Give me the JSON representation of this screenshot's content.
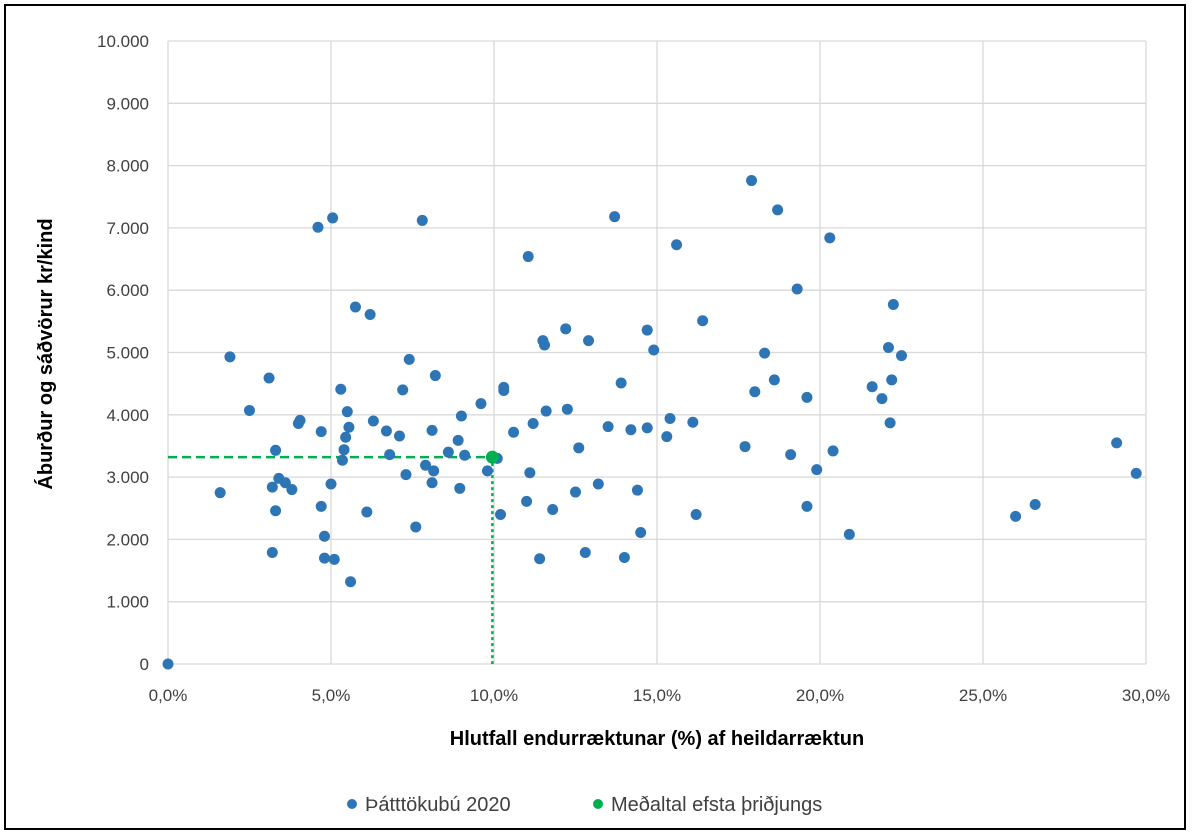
{
  "chart_data": {
    "type": "scatter",
    "xlabel": "Hlutfall endurræktunar (%) af heildarræktun",
    "ylabel": "Áburður og sáðvörur kr/kind",
    "xlim": [
      0,
      30
    ],
    "ylim": [
      0,
      10000
    ],
    "x_ticks": [
      "0,0%",
      "5,0%",
      "10,0%",
      "15,0%",
      "20,0%",
      "25,0%",
      "30,0%"
    ],
    "y_ticks": [
      "0",
      "1.000",
      "2.000",
      "3.000",
      "4.000",
      "5.000",
      "6.000",
      "7.000",
      "8.000",
      "9.000",
      "10.000"
    ],
    "grid": true,
    "legend_position": "bottom",
    "colors": {
      "series1": "#2E75B6",
      "series2": "#00B050",
      "grid": "#D9D9D9"
    },
    "series": [
      {
        "name": "Þátttökubú 2020",
        "points": [
          [
            0.0,
            0
          ],
          [
            1.6,
            2750
          ],
          [
            1.9,
            4930
          ],
          [
            2.5,
            4070
          ],
          [
            3.1,
            4590
          ],
          [
            3.2,
            2840
          ],
          [
            3.2,
            1790
          ],
          [
            3.3,
            3430
          ],
          [
            3.3,
            2460
          ],
          [
            3.4,
            2980
          ],
          [
            3.6,
            2910
          ],
          [
            3.8,
            2800
          ],
          [
            4.0,
            3860
          ],
          [
            4.05,
            3910
          ],
          [
            4.6,
            7010
          ],
          [
            4.7,
            3730
          ],
          [
            4.7,
            2530
          ],
          [
            4.8,
            2050
          ],
          [
            4.8,
            1700
          ],
          [
            5.0,
            2890
          ],
          [
            5.05,
            7160
          ],
          [
            5.1,
            1680
          ],
          [
            5.3,
            4410
          ],
          [
            5.35,
            3270
          ],
          [
            5.4,
            3440
          ],
          [
            5.45,
            3640
          ],
          [
            5.5,
            4050
          ],
          [
            5.55,
            3800
          ],
          [
            5.6,
            1320
          ],
          [
            5.75,
            5730
          ],
          [
            6.1,
            2440
          ],
          [
            6.2,
            5610
          ],
          [
            6.3,
            3900
          ],
          [
            6.7,
            3740
          ],
          [
            6.8,
            3360
          ],
          [
            7.1,
            3660
          ],
          [
            7.2,
            4400
          ],
          [
            7.3,
            3040
          ],
          [
            7.4,
            4890
          ],
          [
            7.6,
            2200
          ],
          [
            7.8,
            7120
          ],
          [
            7.9,
            3190
          ],
          [
            8.1,
            3750
          ],
          [
            8.1,
            2910
          ],
          [
            8.15,
            3100
          ],
          [
            8.2,
            4630
          ],
          [
            8.6,
            3400
          ],
          [
            8.9,
            3590
          ],
          [
            8.95,
            2820
          ],
          [
            9.0,
            3980
          ],
          [
            9.1,
            3350
          ],
          [
            9.6,
            4180
          ],
          [
            9.8,
            3100
          ],
          [
            10.1,
            3300
          ],
          [
            10.2,
            2400
          ],
          [
            10.3,
            4440
          ],
          [
            10.3,
            4390
          ],
          [
            10.6,
            3720
          ],
          [
            11.0,
            2610
          ],
          [
            11.05,
            6540
          ],
          [
            11.1,
            3070
          ],
          [
            11.2,
            3860
          ],
          [
            11.4,
            1690
          ],
          [
            11.5,
            5190
          ],
          [
            11.55,
            5120
          ],
          [
            11.6,
            4060
          ],
          [
            11.8,
            2480
          ],
          [
            12.2,
            5380
          ],
          [
            12.25,
            4090
          ],
          [
            12.5,
            2760
          ],
          [
            12.6,
            3470
          ],
          [
            12.8,
            1790
          ],
          [
            12.9,
            5190
          ],
          [
            13.2,
            2890
          ],
          [
            13.5,
            3810
          ],
          [
            13.7,
            7180
          ],
          [
            13.9,
            4510
          ],
          [
            14.0,
            1710
          ],
          [
            14.2,
            3760
          ],
          [
            14.4,
            2790
          ],
          [
            14.5,
            2110
          ],
          [
            14.7,
            5360
          ],
          [
            14.7,
            3790
          ],
          [
            14.9,
            5040
          ],
          [
            15.3,
            3650
          ],
          [
            15.4,
            3940
          ],
          [
            15.6,
            6730
          ],
          [
            16.1,
            3880
          ],
          [
            16.2,
            2400
          ],
          [
            16.4,
            5510
          ],
          [
            17.7,
            3490
          ],
          [
            17.9,
            7760
          ],
          [
            18.0,
            4370
          ],
          [
            18.3,
            4990
          ],
          [
            18.6,
            4560
          ],
          [
            18.7,
            7290
          ],
          [
            19.1,
            3360
          ],
          [
            19.3,
            6020
          ],
          [
            19.6,
            4280
          ],
          [
            19.6,
            2530
          ],
          [
            19.9,
            3120
          ],
          [
            20.3,
            6840
          ],
          [
            20.4,
            3420
          ],
          [
            20.9,
            2080
          ],
          [
            21.6,
            4450
          ],
          [
            21.9,
            4260
          ],
          [
            22.1,
            5080
          ],
          [
            22.15,
            3870
          ],
          [
            22.2,
            4560
          ],
          [
            22.25,
            5770
          ],
          [
            22.5,
            4950
          ],
          [
            26.0,
            2370
          ],
          [
            26.6,
            2560
          ],
          [
            29.1,
            3550
          ],
          [
            29.7,
            3060
          ]
        ]
      },
      {
        "name": "Meðaltal efsta þriðjungs",
        "points": [
          [
            9.95,
            3320
          ]
        ]
      }
    ]
  }
}
